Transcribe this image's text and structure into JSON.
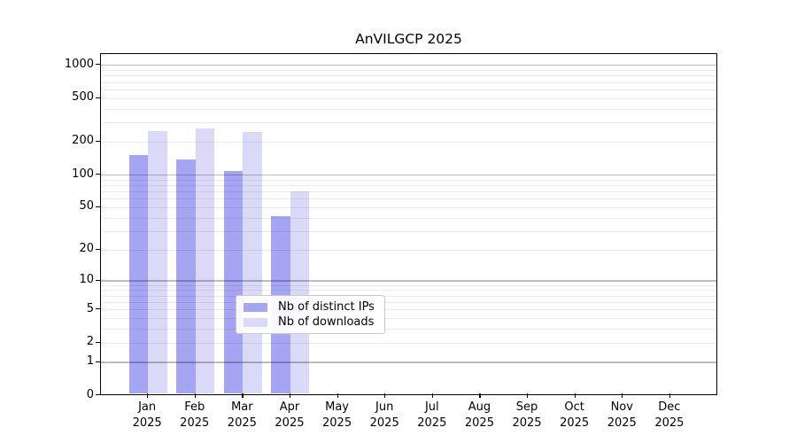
{
  "chart_data": {
    "type": "bar",
    "title": "AnVILGCP 2025",
    "xlabel": "",
    "ylabel": "",
    "year": "2025",
    "categories": [
      "Jan",
      "Feb",
      "Mar",
      "Apr",
      "May",
      "Jun",
      "Jul",
      "Aug",
      "Sep",
      "Oct",
      "Nov",
      "Dec"
    ],
    "series": [
      {
        "name": "Nb of distinct IPs",
        "color": "#a5a5f3",
        "values": [
          155,
          140,
          110,
          42,
          0,
          0,
          0,
          0,
          0,
          0,
          0,
          0
        ]
      },
      {
        "name": "Nb of downloads",
        "color": "#dadaf8",
        "values": [
          255,
          270,
          248,
          72,
          0,
          0,
          0,
          0,
          0,
          0,
          0,
          0
        ]
      }
    ],
    "y_scale": "log1p",
    "y_ticks": [
      0,
      1,
      2,
      5,
      10,
      20,
      50,
      100,
      200,
      500,
      1000
    ],
    "ylim": [
      0,
      1280
    ],
    "grid": true,
    "legend_position": "lower center"
  },
  "colors": {
    "axis": "#000000",
    "grid_minor": "#ececec",
    "grid_major": "#c2c2c2",
    "legend_border": "#c9c9c9",
    "background": "#ffffff"
  }
}
